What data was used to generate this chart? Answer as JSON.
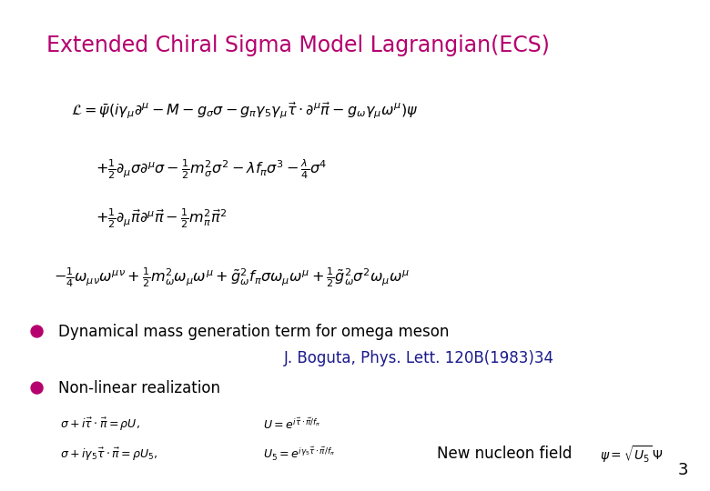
{
  "title": "Extended Chiral Sigma Model Lagrangian(ECS)",
  "title_color": "#B5006E",
  "title_fontsize": 17,
  "background_color": "#FFFFFF",
  "text_color": "#000000",
  "navy_color": "#1A1A8C",
  "bullet_color": "#B5006E",
  "eq_line1": "$\\mathcal{L} = \\bar{\\psi}(i\\gamma_\\mu\\partial^\\mu - M - g_\\sigma\\sigma - g_\\pi\\gamma_5\\gamma_\\mu\\vec{\\tau}\\cdot\\partial^\\mu\\vec{\\pi} - g_\\omega\\gamma_\\mu\\omega^\\mu)\\psi$",
  "eq_line2": "$+ \\frac{1}{2}\\partial_\\mu\\sigma\\partial^\\mu\\sigma - \\frac{1}{2}m_\\sigma^2\\sigma^2 - \\lambda f_\\pi\\sigma^3 - \\frac{\\lambda}{4}\\sigma^4$",
  "eq_line3": "$+ \\frac{1}{2}\\partial_\\mu\\vec{\\pi}\\partial^\\mu\\vec{\\pi} - \\frac{1}{2}m_\\pi^2\\vec{\\pi}^2$",
  "eq_line4": "$- \\frac{1}{4}\\omega_{\\mu\\nu}\\omega^{\\mu\\nu} + \\frac{1}{2}m_\\omega^2\\omega_\\mu\\omega^\\mu + \\tilde{g}_\\omega^2 f_\\pi\\sigma\\omega_\\mu\\omega^\\mu + \\frac{1}{2}\\tilde{g}_\\omega^2\\sigma^2\\omega_\\mu\\omega^\\mu$",
  "bullet1_text": "Dynamical mass generation term for omega meson",
  "bullet1_sub": "J. Boguta, Phys. Lett. 120B(1983)34",
  "bullet2_text": "Non-linear realization",
  "eq_small1a": "$\\sigma + i\\vec{\\tau}\\cdot\\vec{\\pi} = \\rho U,$",
  "eq_small1b": "$U = e^{i\\vec{\\tau}\\cdot\\vec{\\pi}/f_\\pi}$",
  "eq_small2a": "$\\sigma + i\\gamma_5\\vec{\\tau}\\cdot\\vec{\\pi} = \\rho U_5,$",
  "eq_small2b": "$U_5 = e^{i\\gamma_5\\vec{\\tau}\\cdot\\vec{\\pi}/f_\\pi}$",
  "new_nucleon_label": "New nucleon field",
  "new_nucleon_eq": "$\\psi = \\sqrt{U_5}\\,\\Psi$",
  "page_number": "3",
  "eq_line2_indent": 0.135,
  "eq_line3_indent": 0.135,
  "eq_line4_indent": 0.075
}
